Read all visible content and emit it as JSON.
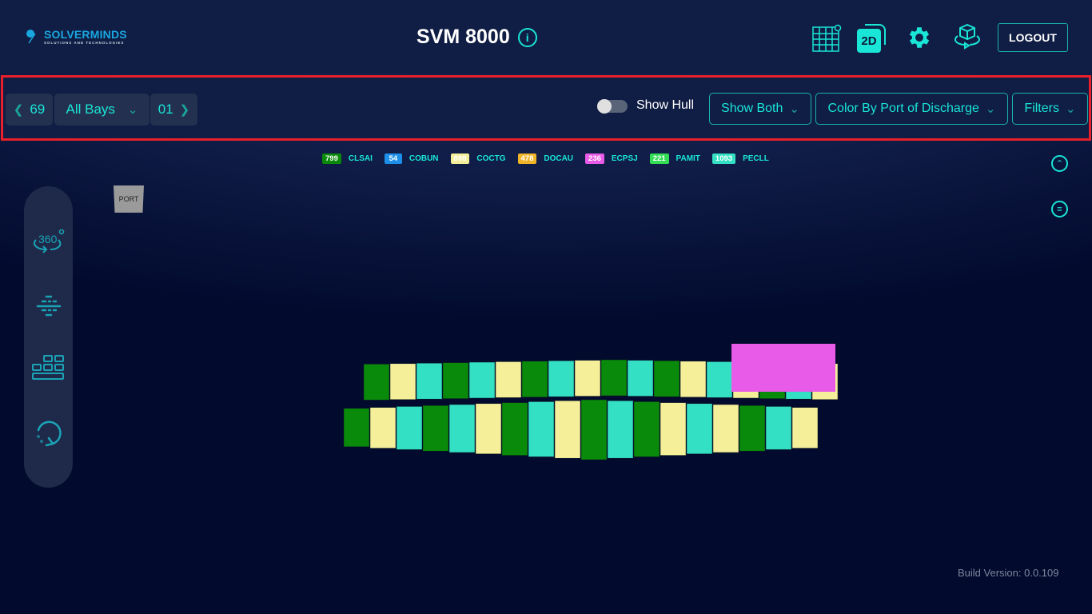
{
  "header": {
    "logo_text": "SOLVERMINDS",
    "logo_subtext": "SOLUTIONS AND TECHNOLOGIES",
    "title": "SVM 8000",
    "info_icon": "i",
    "icons": [
      "grid-icon",
      "2d-view-icon",
      "settings-icon",
      "3d-rotate-icon"
    ],
    "view_2d_label": "2D",
    "logout_label": "LOGOUT"
  },
  "toolbar": {
    "bay_prev": "69",
    "bay_select": "All Bays",
    "bay_next": "01",
    "show_hull_label": "Show Hull",
    "show_hull_on": false,
    "show_both": "Show Both",
    "color_by": "Color By Port of Discharge",
    "filters": "Filters"
  },
  "legend": [
    {
      "count": "799",
      "code": "CLSAI",
      "color": "#0a8a0a"
    },
    {
      "count": "54",
      "code": "COBUN",
      "color": "#1d8fe8"
    },
    {
      "count": "898",
      "code": "COCTG",
      "color": "#f5ef9a"
    },
    {
      "count": "478",
      "code": "DOCAU",
      "color": "#f0b429"
    },
    {
      "count": "236",
      "code": "ECPSJ",
      "color": "#e85be8"
    },
    {
      "count": "221",
      "code": "PAMIT",
      "color": "#33dd55"
    },
    {
      "count": "1093",
      "code": "PECLL",
      "color": "#33e0c4"
    }
  ],
  "viewport": {
    "port_label": "PORT"
  },
  "sidebar": {
    "icons": [
      "360-view-icon",
      "section-view-icon",
      "stack-view-icon",
      "reset-view-icon"
    ],
    "label_360": "360"
  },
  "footer": {
    "build_version": "Build Version: 0.0.109"
  }
}
